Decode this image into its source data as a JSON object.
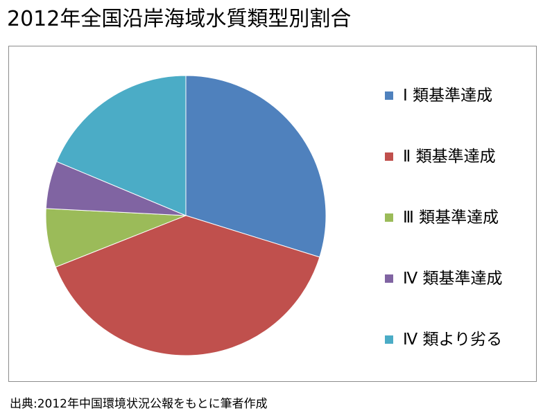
{
  "title": "2012年全国沿岸海域水質類型別割合",
  "source": "出典:2012年中国環境状況公報をもとに筆者作成",
  "chart_data": {
    "type": "pie",
    "title": "2012年全国沿岸海域水質類型別割合",
    "categories": [
      "Ⅰ 類基準達成",
      "Ⅱ 類基準達成",
      "Ⅲ 類基準達成",
      "Ⅳ 類基準達成",
      "Ⅳ 類より劣る"
    ],
    "values": [
      29.8,
      39.2,
      6.8,
      5.5,
      18.7
    ],
    "colors": [
      "#4f81bd",
      "#c0504d",
      "#9bbb59",
      "#8064a2",
      "#4bacc6"
    ],
    "legend": "right"
  }
}
